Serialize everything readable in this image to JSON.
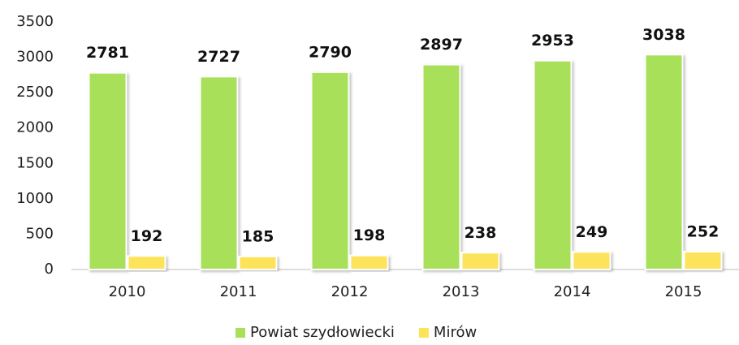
{
  "chart_data": {
    "type": "bar",
    "categories": [
      "2010",
      "2011",
      "2012",
      "2013",
      "2014",
      "2015"
    ],
    "series": [
      {
        "name": "Powiat szydłowiecki",
        "color": "#a9e05a",
        "values": [
          2781,
          2727,
          2790,
          2897,
          2953,
          3038
        ]
      },
      {
        "name": "Mirów",
        "color": "#fde35a",
        "values": [
          192,
          185,
          198,
          238,
          249,
          252
        ]
      }
    ],
    "ylim": [
      0,
      3500
    ],
    "yticks": [
      0,
      500,
      1000,
      1500,
      2000,
      2500,
      3000,
      3500
    ],
    "grid": false,
    "legend": "bottom"
  }
}
